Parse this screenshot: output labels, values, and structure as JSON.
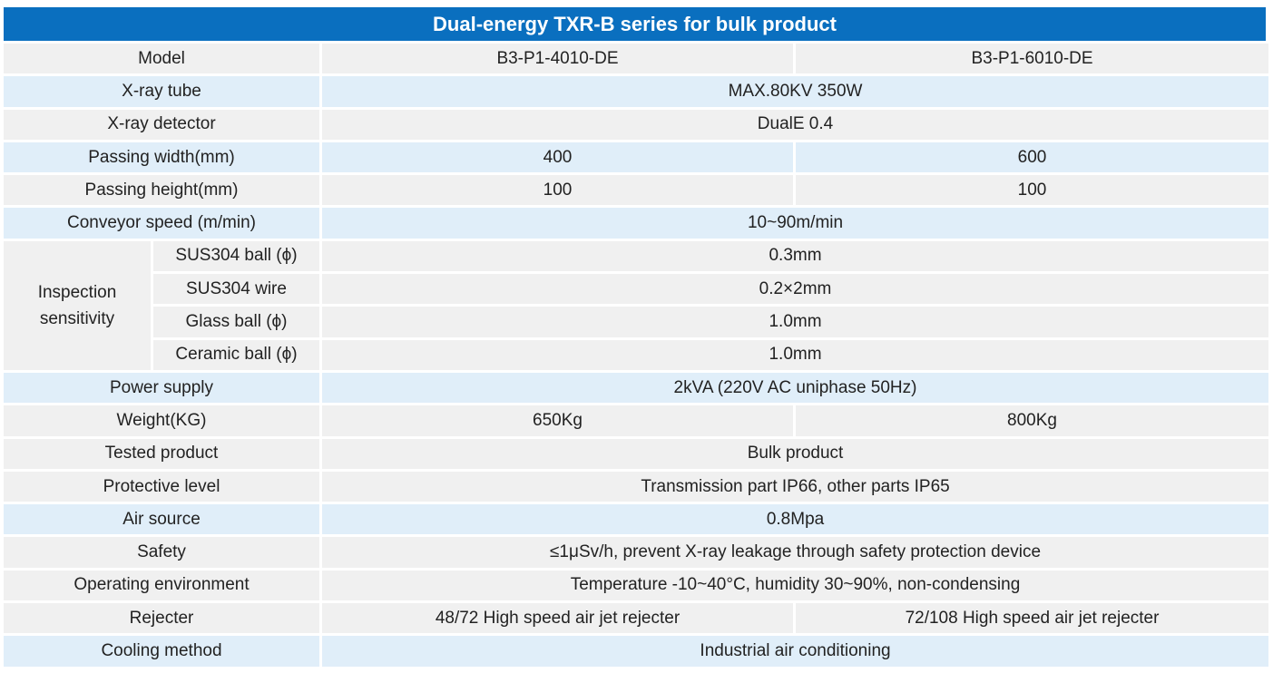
{
  "title": "Dual-energy TXR-B series for bulk product",
  "rows": [
    {
      "label": "Model",
      "values": [
        "B3-P1-4010-DE",
        "B3-P1-6010-DE"
      ]
    },
    {
      "label": "X-ray tube",
      "value": "MAX.80KV 350W"
    },
    {
      "label": "X-ray detector",
      "value": "DualE 0.4"
    },
    {
      "label": "Passing width(mm)",
      "values": [
        "400",
        "600"
      ]
    },
    {
      "label": "Passing height(mm)",
      "values": [
        "100",
        "100"
      ]
    },
    {
      "label": "Conveyor speed (m/min)",
      "value": "10~90m/min"
    },
    {
      "label": "Power supply",
      "value": "2kVA (220V AC uniphase 50Hz)"
    },
    {
      "label": "Weight(KG)",
      "values": [
        "650Kg",
        "800Kg"
      ]
    },
    {
      "label": "Tested product",
      "value": "Bulk product"
    },
    {
      "label": "Protective level",
      "value": "Transmission part IP66, other parts IP65"
    },
    {
      "label": "Air source",
      "value": "0.8Mpa"
    },
    {
      "label": "Safety",
      "value": "≤1μSv/h, prevent X-ray leakage through safety protection device"
    },
    {
      "label": "Operating environment",
      "value": "Temperature -10~40°C, humidity 30~90%, non-condensing"
    },
    {
      "label": "Rejecter",
      "values": [
        "48/72 High speed air jet rejecter",
        "72/108 High speed air jet rejecter"
      ]
    },
    {
      "label": "Cooling method",
      "value": "Industrial air conditioning"
    }
  ],
  "inspection": {
    "group_label_line1": "Inspection",
    "group_label_line2": "sensitivity",
    "items": [
      {
        "label": "SUS304 ball (ϕ)",
        "value": "0.3mm"
      },
      {
        "label": "SUS304 wire",
        "value": "0.2×2mm"
      },
      {
        "label": "Glass ball (ϕ)",
        "value": "1.0mm"
      },
      {
        "label": "Ceramic ball (ϕ)",
        "value": "1.0mm"
      }
    ]
  },
  "colors": {
    "header_bg": "#0a6fbf",
    "band_gray": "#f0f0f0",
    "band_blue": "#e0eef9"
  }
}
